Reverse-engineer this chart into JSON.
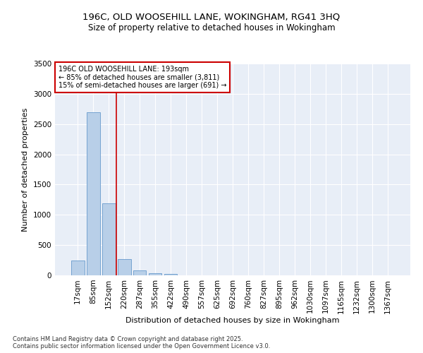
{
  "title_line1": "196C, OLD WOOSEHILL LANE, WOKINGHAM, RG41 3HQ",
  "title_line2": "Size of property relative to detached houses in Wokingham",
  "xlabel": "Distribution of detached houses by size in Wokingham",
  "ylabel": "Number of detached properties",
  "categories": [
    "17sqm",
    "85sqm",
    "152sqm",
    "220sqm",
    "287sqm",
    "355sqm",
    "422sqm",
    "490sqm",
    "557sqm",
    "625sqm",
    "692sqm",
    "760sqm",
    "827sqm",
    "895sqm",
    "962sqm",
    "1030sqm",
    "1097sqm",
    "1165sqm",
    "1232sqm",
    "1300sqm",
    "1367sqm"
  ],
  "values": [
    240,
    2690,
    1185,
    270,
    85,
    35,
    18,
    0,
    0,
    0,
    0,
    0,
    0,
    0,
    0,
    0,
    0,
    0,
    0,
    0,
    0
  ],
  "bar_color": "#b8cfe8",
  "bar_edge_color": "#6699cc",
  "vline_color": "#cc0000",
  "annotation_text": "196C OLD WOOSEHILL LANE: 193sqm\n← 85% of detached houses are smaller (3,811)\n15% of semi-detached houses are larger (691) →",
  "annotation_box_color": "#ffffff",
  "annotation_box_edge": "#cc0000",
  "ylim": [
    0,
    3500
  ],
  "yticks": [
    0,
    500,
    1000,
    1500,
    2000,
    2500,
    3000,
    3500
  ],
  "background_color": "#e8eef7",
  "grid_color": "#ffffff",
  "footer_text": "Contains HM Land Registry data © Crown copyright and database right 2025.\nContains public sector information licensed under the Open Government Licence v3.0.",
  "title_fontsize": 9.5,
  "subtitle_fontsize": 8.5,
  "axis_label_fontsize": 8,
  "tick_fontsize": 7.5,
  "fig_bg": "#ffffff"
}
